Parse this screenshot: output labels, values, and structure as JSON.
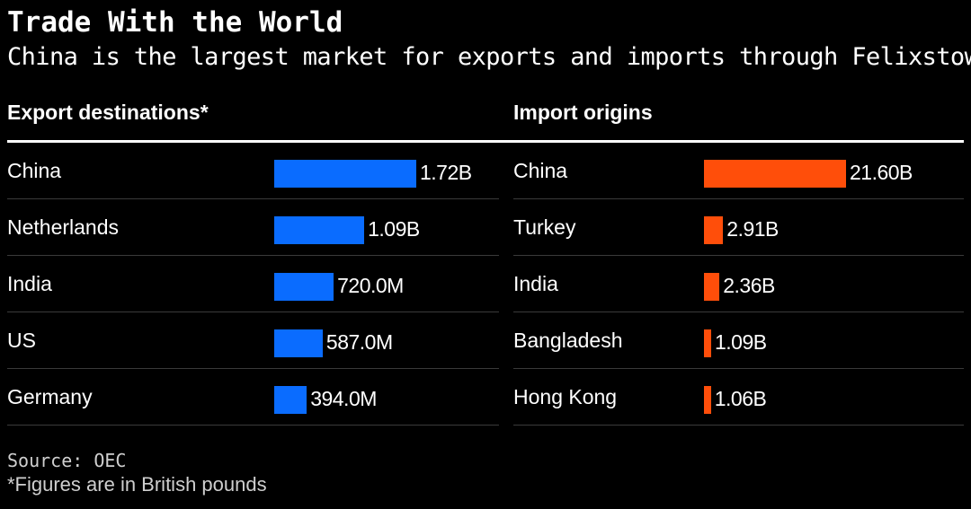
{
  "title": "Trade With the World",
  "subtitle": "China is the largest market for exports and imports through Felixstowe",
  "source": "Source: OEC",
  "footnote": "*Figures are in British pounds",
  "colors": {
    "exports": "#0a6cff",
    "imports": "#ff4e0a",
    "background": "#000000",
    "text": "#ffffff"
  },
  "chart_data": [
    {
      "type": "bar",
      "orientation": "horizontal",
      "title": "Export destinations*",
      "categories": [
        "China",
        "Netherlands",
        "India",
        "US",
        "Germany"
      ],
      "values": [
        1720000000,
        1090000000,
        720000000,
        587000000,
        394000000
      ],
      "value_labels": [
        "1.72B",
        "1.09B",
        "720.0M",
        "587.0M",
        "394.0M"
      ],
      "xlim": [
        0,
        1720000000
      ],
      "grid": false
    },
    {
      "type": "bar",
      "orientation": "horizontal",
      "title": "Import origins",
      "categories": [
        "China",
        "Turkey",
        "India",
        "Bangladesh",
        "Hong Kong"
      ],
      "values": [
        21600000000,
        2910000000,
        2360000000,
        1090000000,
        1060000000
      ],
      "value_labels": [
        "21.60B",
        "2.91B",
        "2.36B",
        "1.09B",
        "1.06B"
      ],
      "xlim": [
        0,
        21600000000
      ],
      "grid": false
    }
  ]
}
